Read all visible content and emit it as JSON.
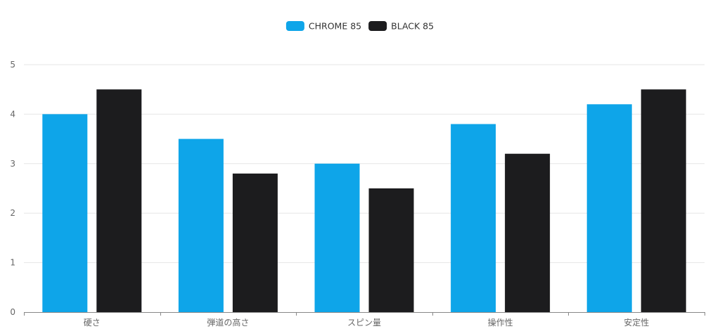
{
  "chart_data": {
    "type": "bar",
    "categories": [
      "硬さ",
      "弾道の高さ",
      "スピン量",
      "操作性",
      "安定性"
    ],
    "series": [
      {
        "name": "CHROME 85",
        "color": "#0ea5e9",
        "values": [
          4.0,
          3.5,
          3.0,
          3.8,
          4.2
        ]
      },
      {
        "name": "BLACK 85",
        "color": "#1c1c1e",
        "values": [
          4.5,
          2.8,
          2.5,
          3.2,
          4.5
        ]
      }
    ],
    "ylim": [
      0,
      5
    ],
    "yticks": [
      0,
      1,
      2,
      3,
      4,
      5
    ],
    "grid": true,
    "legend_position": "top-center"
  }
}
